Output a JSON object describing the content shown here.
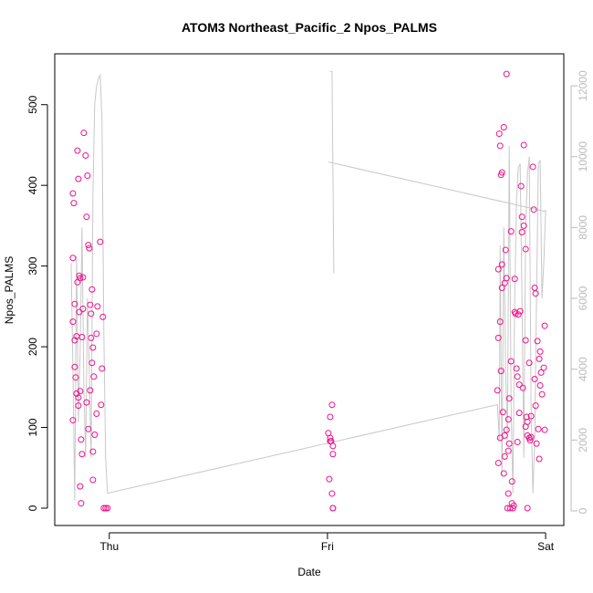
{
  "chart_data": {
    "type": "scatter",
    "title": "ATOM3 Northeast_Pacific_2 Npos_PALMS",
    "x_label": "Date",
    "y_label": "Npos_PALMS",
    "color": "#ee1289",
    "xlim": [
      -6,
      50
    ],
    "xticks": [
      {
        "value": 0,
        "label": "Thu"
      },
      {
        "value": 24,
        "label": "Fri"
      },
      {
        "value": 48,
        "label": "Sat"
      }
    ],
    "ylim": [
      -21.5,
      563
    ],
    "yticks": [
      0,
      100,
      200,
      300,
      400,
      500
    ],
    "y2lim": [
      -412,
      12902
    ],
    "y2ticks": [
      0,
      2000,
      4000,
      6000,
      8000,
      10000,
      12000
    ],
    "x": [
      -4.0,
      -3.9,
      -4.0,
      -3.8,
      -4.0,
      -3.8,
      -3.6,
      -3.8,
      -3.7,
      -4.0,
      -3.5,
      -3.5,
      -3.4,
      -3.3,
      -3.2,
      -2.9,
      -3.3,
      -2.9,
      -3.0,
      -3.6,
      -3.4,
      -3.2,
      -3.4,
      -3.1,
      -3.0,
      -3.2,
      -3.1,
      -2.8,
      -2.6,
      -2.4,
      -2.5,
      -2.3,
      -2.2,
      -2.1,
      -1.9,
      -2.0,
      -2.0,
      -1.9,
      -1.8,
      -1.7,
      -2.3,
      -2.1,
      -2.5,
      -1.6,
      -1.8,
      -1.8,
      -1.3,
      -1.0,
      -1.4,
      -1.4,
      -0.7,
      -0.8,
      -0.9,
      -0.4,
      -0.6,
      -0.2,
      24.1,
      24.2,
      24.3,
      24.3,
      24.4,
      24.5,
      24.6,
      24.6,
      24.5,
      24.6,
      24.6,
      24.3,
      42.7,
      42.8,
      42.8,
      42.8,
      42.9,
      43.0,
      43.0,
      43.0,
      43.1,
      43.2,
      43.4,
      43.2,
      43.2,
      43.1,
      43.3,
      43.4,
      43.5,
      43.5,
      43.6,
      43.5,
      43.7,
      43.7,
      43.8,
      43.9,
      43.9,
      44.0,
      44.0,
      44.1,
      44.2,
      44.2,
      44.3,
      44.3,
      44.4,
      44.5,
      44.6,
      44.6,
      44.7,
      44.8,
      44.9,
      44.9,
      45.0,
      45.1,
      45.2,
      45.3,
      45.4,
      45.4,
      45.6,
      45.6,
      45.8,
      45.8,
      45.9,
      45.8,
      46.0,
      46.0,
      46.2,
      46.2,
      46.4,
      46.4,
      46.6,
      46.7,
      46.8,
      46.9,
      46.8,
      46.9,
      47.0,
      47.1,
      47.2,
      47.3,
      47.3,
      47.4,
      47.4,
      47.5,
      47.6,
      47.8,
      47.9,
      47.9,
      46.0,
      45.1,
      45.5,
      46.3,
      43.7,
      43.9
    ],
    "values": [
      390,
      378,
      310,
      253,
      231,
      208,
      213,
      175,
      162,
      109,
      280,
      443,
      408,
      288,
      285,
      286,
      243,
      247,
      212,
      142,
      137,
      145,
      127,
      85,
      67,
      27,
      6,
      465,
      437,
      412,
      361,
      326,
      322,
      252,
      271,
      241,
      211,
      180,
      199,
      163,
      98,
      146,
      131,
      91,
      70,
      35,
      250,
      330,
      216,
      117,
      237,
      173,
      128,
      0,
      0,
      0,
      93,
      36,
      113,
      87,
      83,
      128,
      77,
      67,
      18,
      0,
      0,
      83,
      146,
      296,
      56,
      211,
      464,
      449,
      231,
      87,
      413,
      416,
      472,
      302,
      273,
      170,
      119,
      43,
      64,
      90,
      320,
      279,
      285,
      538,
      0,
      18,
      71,
      136,
      80,
      0,
      343,
      182,
      33,
      6,
      0,
      3,
      284,
      243,
      241,
      173,
      163,
      82,
      240,
      153,
      244,
      399,
      361,
      342,
      450,
      350,
      321,
      208,
      113,
      101,
      107,
      90,
      87,
      180,
      88,
      114,
      423,
      370,
      273,
      266,
      160,
      127,
      80,
      207,
      98,
      185,
      61,
      194,
      152,
      168,
      141,
      174,
      226,
      97,
      0,
      118,
      149,
      84,
      97,
      110
    ],
    "line": {
      "axis": "y2",
      "color": "#c8c8c8",
      "x": [
        -4.2,
        -4.0,
        -3.8,
        -3.6,
        -3.4,
        -3.2,
        -3.0,
        -2.8,
        -2.6,
        -2.4,
        -2.2,
        -2.0,
        -1.8,
        -1.6,
        -1.4,
        -1.2,
        -1.0,
        -0.8,
        -0.6,
        -0.4,
        -0.2,
        42.7,
        42.9,
        43.0,
        43.2,
        43.4,
        43.6,
        43.8,
        44.0,
        44.2,
        44.4,
        44.6,
        44.8,
        45.0,
        45.2,
        45.4,
        45.6,
        45.8,
        46.0,
        46.2,
        46.4,
        46.6,
        46.8,
        47.0,
        47.2,
        47.4,
        47.6,
        47.8,
        48.0,
        null,
        24.3,
        24.5,
        24.7,
        null,
        24.1,
        48.0
      ],
      "values": [
        7000,
        4000,
        300,
        7200,
        2500,
        4500,
        8000,
        3500,
        1500,
        6000,
        4000,
        1500,
        9000,
        11500,
        12000,
        12200,
        12300,
        11000,
        5000,
        1500,
        500,
        3000,
        2000,
        7500,
        1000,
        8000,
        4000,
        2000,
        10300,
        3000,
        500,
        6000,
        8800,
        9700,
        9800,
        6000,
        1500,
        8000,
        9500,
        10000,
        3000,
        500,
        2000,
        6000,
        9800,
        9900,
        6000,
        7000,
        8500,
        null,
        12400,
        12400,
        6700,
        null,
        9850,
        8450
      ]
    }
  }
}
